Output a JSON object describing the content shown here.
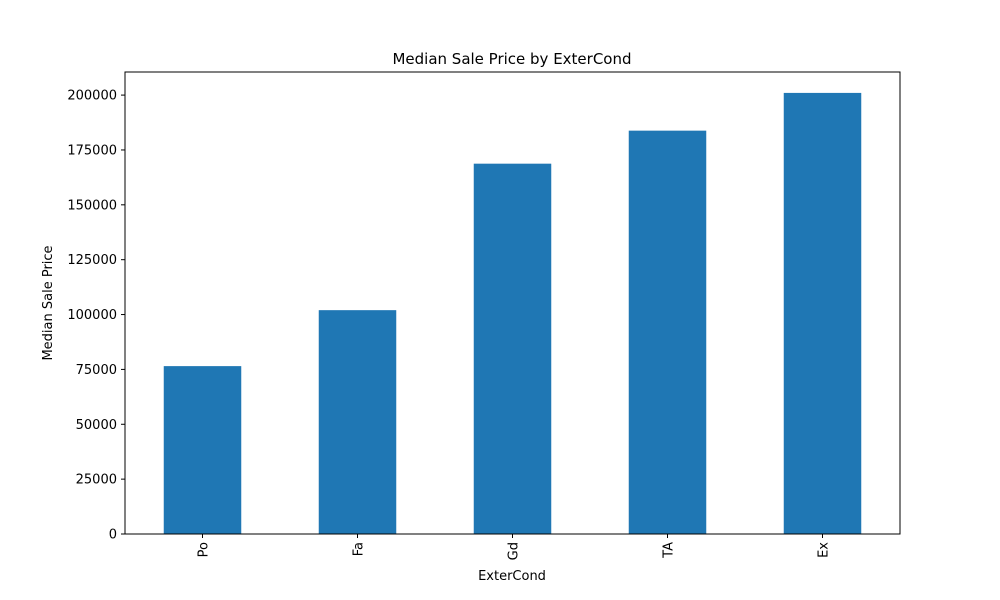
{
  "chart_data": {
    "type": "bar",
    "title": "Median Sale Price by ExterCond",
    "xlabel": "ExterCond",
    "ylabel": "Median Sale Price",
    "categories": [
      "Po",
      "Fa",
      "Gd",
      "TA",
      "Ex"
    ],
    "values": [
      76500,
      102000,
      168750,
      183800,
      201000
    ],
    "ylim": [
      0,
      210525
    ],
    "yticks": [
      0,
      25000,
      50000,
      75000,
      100000,
      125000,
      150000,
      175000,
      200000
    ],
    "ytick_labels": [
      "0",
      "25000",
      "50000",
      "75000",
      "100000",
      "125000",
      "150000",
      "175000",
      "200000"
    ],
    "grid": false,
    "bar_color": "#1f77b4"
  }
}
